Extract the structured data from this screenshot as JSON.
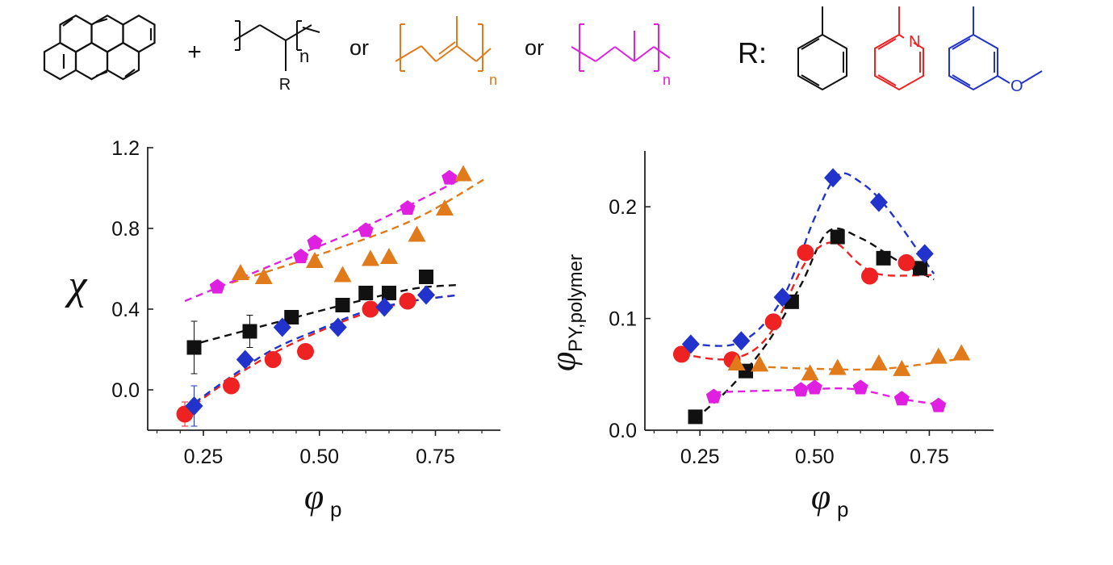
{
  "scheme": {
    "plus": "+",
    "or_1": "or",
    "or_2": "or",
    "r_label": "R:",
    "ps_sub_R": "R",
    "repeat_n_1": "n",
    "repeat_n_2": "n",
    "repeat_n_3": "n",
    "pyridine_N": "N",
    "methoxy_O": "O",
    "colors": {
      "black": "#111111",
      "red": "#ee2222",
      "blue": "#2233cc",
      "orange": "#e07a1a",
      "magenta": "#e020e0"
    }
  },
  "chart_data": [
    {
      "type": "scatter",
      "ylabel_symbol": "χ",
      "xlabel_symbol": "φ",
      "xlabel_sub": "p",
      "xlim": [
        0.13,
        0.89
      ],
      "ylim": [
        -0.2,
        1.2
      ],
      "xticks": [
        {
          "v": 0.25,
          "label": "0.25"
        },
        {
          "v": 0.5,
          "label": "0.50"
        },
        {
          "v": 0.75,
          "label": "0.75"
        }
      ],
      "yticks": [
        {
          "v": 0.0,
          "label": "0.0"
        },
        {
          "v": 0.4,
          "label": "0.4"
        },
        {
          "v": 0.8,
          "label": "0.8"
        },
        {
          "v": 1.2,
          "label": "1.2"
        }
      ],
      "series": [
        {
          "name": "black",
          "marker": "square",
          "color": "#111111",
          "x": [
            0.23,
            0.35,
            0.44,
            0.55,
            0.6,
            0.65,
            0.73
          ],
          "y": [
            0.21,
            0.29,
            0.36,
            0.42,
            0.48,
            0.48,
            0.56
          ],
          "err": [
            0.13,
            0.08,
            0,
            0,
            0,
            0,
            0
          ],
          "fit": [
            [
              0.22,
              0.22
            ],
            [
              0.4,
              0.33
            ],
            [
              0.55,
              0.42
            ],
            [
              0.7,
              0.5
            ],
            [
              0.8,
              0.52
            ]
          ]
        },
        {
          "name": "red",
          "marker": "circle",
          "color": "#ee2222",
          "x": [
            0.21,
            0.31,
            0.4,
            0.47,
            0.61,
            0.69
          ],
          "y": [
            -0.12,
            0.02,
            0.15,
            0.19,
            0.4,
            0.44
          ],
          "err": [
            0.06,
            0,
            0,
            0,
            0,
            0
          ],
          "fit": [
            [
              0.21,
              -0.11
            ],
            [
              0.3,
              0.04
            ],
            [
              0.4,
              0.18
            ],
            [
              0.5,
              0.29
            ],
            [
              0.6,
              0.38
            ],
            [
              0.7,
              0.44
            ],
            [
              0.8,
              0.47
            ]
          ]
        },
        {
          "name": "blue",
          "marker": "diamond",
          "color": "#2233cc",
          "x": [
            0.23,
            0.34,
            0.42,
            0.54,
            0.64,
            0.73
          ],
          "y": [
            -0.08,
            0.15,
            0.31,
            0.31,
            0.41,
            0.47
          ],
          "err": [
            0.1,
            0,
            0,
            0,
            0,
            0
          ],
          "fit": [
            [
              0.21,
              -0.1
            ],
            [
              0.3,
              0.05
            ],
            [
              0.4,
              0.2
            ],
            [
              0.5,
              0.3
            ],
            [
              0.6,
              0.39
            ],
            [
              0.7,
              0.44
            ],
            [
              0.8,
              0.47
            ]
          ]
        },
        {
          "name": "orange",
          "marker": "triangle",
          "color": "#e07a1a",
          "x": [
            0.33,
            0.38,
            0.49,
            0.55,
            0.61,
            0.65,
            0.71,
            0.77,
            0.81
          ],
          "y": [
            0.58,
            0.56,
            0.64,
            0.57,
            0.65,
            0.66,
            0.77,
            0.9,
            1.07
          ],
          "err": [
            0,
            0,
            0,
            0,
            0,
            0,
            0,
            0,
            0
          ],
          "fit": [
            [
              0.31,
              0.53
            ],
            [
              0.5,
              0.67
            ],
            [
              0.7,
              0.84
            ],
            [
              0.86,
              1.05
            ]
          ]
        },
        {
          "name": "magenta",
          "marker": "pentagon",
          "color": "#e020e0",
          "x": [
            0.28,
            0.46,
            0.49,
            0.6,
            0.69,
            0.78
          ],
          "y": [
            0.51,
            0.66,
            0.73,
            0.79,
            0.9,
            1.05
          ],
          "err": [
            0,
            0,
            0,
            0,
            0,
            0
          ],
          "fit": [
            [
              0.21,
              0.44
            ],
            [
              0.4,
              0.62
            ],
            [
              0.6,
              0.81
            ],
            [
              0.81,
              1.05
            ]
          ]
        }
      ]
    },
    {
      "type": "scatter",
      "ylabel_symbol": "φ",
      "ylabel_sub": "PY,polymer",
      "xlabel_symbol": "φ",
      "xlabel_sub": "p",
      "xlim": [
        0.13,
        0.89
      ],
      "ylim": [
        0.0,
        0.25
      ],
      "xticks": [
        {
          "v": 0.25,
          "label": "0.25"
        },
        {
          "v": 0.5,
          "label": "0.50"
        },
        {
          "v": 0.75,
          "label": "0.75"
        }
      ],
      "yticks": [
        {
          "v": 0.0,
          "label": "0.0"
        },
        {
          "v": 0.1,
          "label": "0.1"
        },
        {
          "v": 0.2,
          "label": "0.2"
        }
      ],
      "series": [
        {
          "name": "black",
          "marker": "square",
          "color": "#111111",
          "x": [
            0.24,
            0.35,
            0.45,
            0.55,
            0.65,
            0.73
          ],
          "y": [
            0.012,
            0.053,
            0.115,
            0.173,
            0.154,
            0.145
          ],
          "fit": [
            [
              0.24,
              0.01
            ],
            [
              0.32,
              0.04
            ],
            [
              0.4,
              0.08
            ],
            [
              0.47,
              0.13
            ],
            [
              0.53,
              0.178
            ],
            [
              0.6,
              0.172
            ],
            [
              0.68,
              0.152
            ],
            [
              0.76,
              0.135
            ]
          ]
        },
        {
          "name": "red",
          "marker": "circle",
          "color": "#ee2222",
          "x": [
            0.21,
            0.32,
            0.41,
            0.48,
            0.62,
            0.7
          ],
          "y": [
            0.068,
            0.063,
            0.097,
            0.159,
            0.138,
            0.15
          ],
          "fit": [
            [
              0.21,
              0.068
            ],
            [
              0.32,
              0.064
            ],
            [
              0.4,
              0.085
            ],
            [
              0.48,
              0.15
            ],
            [
              0.54,
              0.168
            ],
            [
              0.6,
              0.148
            ],
            [
              0.65,
              0.139
            ],
            [
              0.76,
              0.139
            ]
          ]
        },
        {
          "name": "blue",
          "marker": "diamond",
          "color": "#2233cc",
          "x": [
            0.23,
            0.34,
            0.43,
            0.54,
            0.64,
            0.74
          ],
          "y": [
            0.077,
            0.08,
            0.119,
            0.226,
            0.204,
            0.158
          ],
          "fit": [
            [
              0.23,
              0.077
            ],
            [
              0.34,
              0.079
            ],
            [
              0.43,
              0.118
            ],
            [
              0.5,
              0.19
            ],
            [
              0.55,
              0.228
            ],
            [
              0.6,
              0.222
            ],
            [
              0.66,
              0.198
            ],
            [
              0.76,
              0.14
            ]
          ]
        },
        {
          "name": "orange",
          "marker": "triangle",
          "color": "#e07a1a",
          "x": [
            0.33,
            0.38,
            0.49,
            0.55,
            0.64,
            0.69,
            0.77,
            0.82
          ],
          "y": [
            0.06,
            0.059,
            0.051,
            0.056,
            0.06,
            0.055,
            0.066,
            0.069
          ],
          "fit": [
            [
              0.32,
              0.058
            ],
            [
              0.5,
              0.055
            ],
            [
              0.65,
              0.055
            ],
            [
              0.82,
              0.064
            ]
          ]
        },
        {
          "name": "magenta",
          "marker": "pentagon",
          "color": "#e020e0",
          "x": [
            0.28,
            0.47,
            0.5,
            0.6,
            0.69,
            0.77
          ],
          "y": [
            0.03,
            0.036,
            0.038,
            0.038,
            0.028,
            0.022
          ],
          "fit": [
            [
              0.28,
              0.034
            ],
            [
              0.45,
              0.036
            ],
            [
              0.58,
              0.037
            ],
            [
              0.69,
              0.028
            ],
            [
              0.77,
              0.023
            ]
          ]
        }
      ]
    }
  ]
}
